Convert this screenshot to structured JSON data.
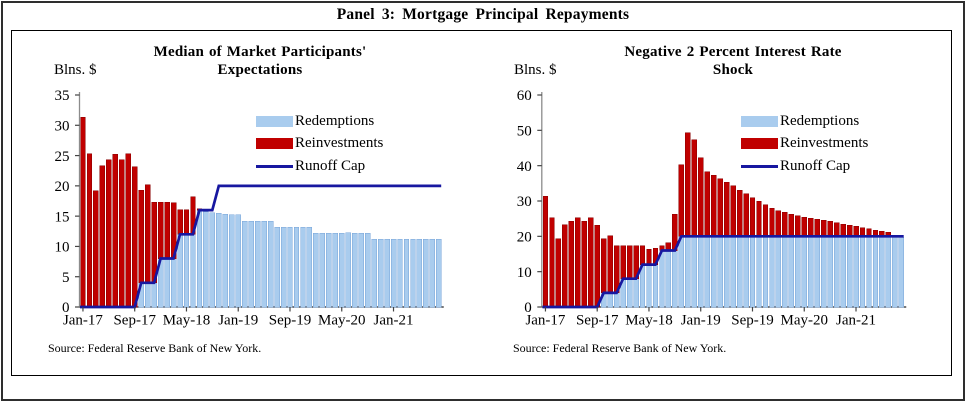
{
  "panel": {
    "title": "Panel 3: Mortgage Principal Repayments"
  },
  "legend": {
    "redemptions": "Redemptions",
    "reinvestments": "Reinvestments",
    "runoff_cap": "Runoff Cap"
  },
  "colors": {
    "redemptions": "#A9CCEE",
    "reinvestments": "#C00000",
    "runoff_cap": "#1717A0",
    "axis_x": "#262626",
    "axis_y": "#8C8C8C",
    "tick": "#444444",
    "text": "#000000"
  },
  "months": [
    "Jan-17",
    "Feb-17",
    "Mar-17",
    "Apr-17",
    "May-17",
    "Jun-17",
    "Jul-17",
    "Aug-17",
    "Sep-17",
    "Oct-17",
    "Nov-17",
    "Dec-17",
    "Jan-18",
    "Feb-18",
    "Mar-18",
    "Apr-18",
    "May-18",
    "Jun-18",
    "Jul-18",
    "Aug-18",
    "Sep-18",
    "Oct-18",
    "Nov-18",
    "Dec-18",
    "Jan-19",
    "Feb-19",
    "Mar-19",
    "Apr-19",
    "May-19",
    "Jun-19",
    "Jul-19",
    "Aug-19",
    "Sep-19",
    "Oct-19",
    "Nov-19",
    "Dec-19",
    "Jan-20",
    "Feb-20",
    "Mar-20",
    "Apr-20",
    "May-20",
    "Jun-20",
    "Jul-20",
    "Aug-20",
    "Sep-20",
    "Oct-20",
    "Nov-20",
    "Dec-20",
    "Jan-21",
    "Feb-21",
    "Mar-21",
    "Apr-21",
    "May-21",
    "Jun-21",
    "Jul-21",
    "Aug-21"
  ],
  "chart_data": [
    {
      "type": "bar",
      "title": "Median of Market Participants' Expectations",
      "title_lines": [
        "Median of Market Participants'",
        "Expectations"
      ],
      "ylabel": "Blns. $",
      "ylim": [
        0,
        35
      ],
      "yticks": [
        0,
        5,
        10,
        15,
        20,
        25,
        30,
        35
      ],
      "stacked": true,
      "legend_position": "upper right",
      "xticks": {
        "indices": [
          0,
          8,
          16,
          24,
          32,
          40,
          48
        ],
        "labels": [
          "Jan-17",
          "Sep-17",
          "May-18",
          "Jan-19",
          "Sep-19",
          "May-20",
          "Jan-21"
        ]
      },
      "split_rule": "redemptions = min(total, runoff_cap); reinvestments = total - redemptions",
      "series": [
        {
          "name": "Total principal repayments",
          "role": "bar_total",
          "values": [
            31.3,
            25.3,
            19.2,
            23.3,
            24.3,
            25.2,
            24.3,
            25.3,
            23.2,
            19.3,
            20.2,
            17.3,
            17.3,
            17.3,
            17.2,
            16.1,
            16.1,
            18.2,
            16.2,
            15.7,
            15.6,
            15.5,
            15.3,
            15.2,
            15.2,
            14.2,
            14.2,
            14.2,
            14.2,
            14.2,
            13.2,
            13.2,
            13.2,
            13.2,
            13.2,
            13.2,
            12.2,
            12.2,
            12.2,
            12.2,
            12.2,
            12.3,
            12.2,
            12.2,
            12.2,
            11.2,
            11.2,
            11.2,
            11.2,
            11.2,
            11.2,
            11.2,
            11.2,
            11.2,
            11.2,
            11.2
          ]
        },
        {
          "name": "Runoff Cap",
          "role": "line",
          "values": [
            0,
            0,
            0,
            0,
            0,
            0,
            0,
            0,
            0,
            4,
            4,
            4,
            8,
            8,
            8,
            12,
            12,
            12,
            16,
            16,
            16,
            20,
            20,
            20,
            20,
            20,
            20,
            20,
            20,
            20,
            20,
            20,
            20,
            20,
            20,
            20,
            20,
            20,
            20,
            20,
            20,
            20,
            20,
            20,
            20,
            20,
            20,
            20,
            20,
            20,
            20,
            20,
            20,
            20,
            20,
            20
          ]
        }
      ],
      "source": "Source: Federal Reserve Bank of New York."
    },
    {
      "type": "bar",
      "title": "Negative 2 Percent Interest Rate Shock",
      "title_lines": [
        "Negative 2 Percent Interest Rate",
        "Shock"
      ],
      "ylabel": "Blns. $",
      "ylim": [
        0,
        60
      ],
      "yticks": [
        0,
        10,
        20,
        30,
        40,
        50,
        60
      ],
      "stacked": true,
      "legend_position": "upper right",
      "xticks": {
        "indices": [
          0,
          8,
          16,
          24,
          32,
          40,
          48
        ],
        "labels": [
          "Jan-17",
          "Sep-17",
          "May-18",
          "Jan-19",
          "Sep-19",
          "May-20",
          "Jan-21"
        ]
      },
      "split_rule": "redemptions = min(total, runoff_cap); reinvestments = total - redemptions",
      "series": [
        {
          "name": "Total principal repayments",
          "role": "bar_total",
          "values": [
            31.3,
            25.3,
            19.3,
            23.3,
            24.3,
            25.3,
            24.3,
            25.3,
            23.2,
            19.3,
            20.2,
            17.4,
            17.3,
            17.3,
            17.4,
            17.3,
            16.4,
            16.6,
            17.4,
            18.2,
            26.3,
            40.3,
            49.4,
            47.4,
            42.3,
            38.3,
            37.3,
            36.3,
            35.3,
            34.3,
            33.0,
            32.0,
            31.0,
            30.0,
            29.0,
            28.0,
            27.3,
            26.8,
            26.3,
            25.8,
            25.4,
            25.2,
            24.8,
            24.5,
            24.3,
            23.8,
            23.5,
            23.1,
            22.8,
            22.4,
            22.1,
            21.8,
            21.4,
            21.1,
            19.9,
            19.8
          ]
        },
        {
          "name": "Runoff Cap",
          "role": "line",
          "values": [
            0,
            0,
            0,
            0,
            0,
            0,
            0,
            0,
            0,
            4,
            4,
            4,
            8,
            8,
            8,
            12,
            12,
            12,
            16,
            16,
            16,
            20,
            20,
            20,
            20,
            20,
            20,
            20,
            20,
            20,
            20,
            20,
            20,
            20,
            20,
            20,
            20,
            20,
            20,
            20,
            20,
            20,
            20,
            20,
            20,
            20,
            20,
            20,
            20,
            20,
            20,
            20,
            20,
            20,
            20,
            20
          ]
        }
      ],
      "source": "Source: Federal Reserve Bank of New York."
    }
  ]
}
